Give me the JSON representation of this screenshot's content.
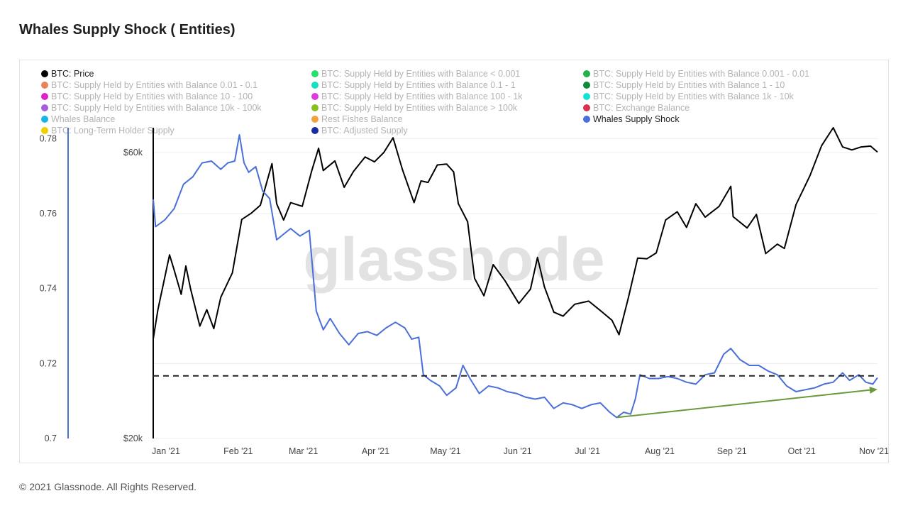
{
  "page": {
    "title": "Whales Supply Shock ( Entities)",
    "footer": "© 2021 Glassnode. All Rights Reserved.",
    "watermark": "glassnode"
  },
  "legend": [
    {
      "label": "BTC: Price",
      "color": "#000000",
      "active": true
    },
    {
      "label": "BTC: Supply Held by Entities with Balance < 0.001",
      "color": "#22e06a",
      "active": false
    },
    {
      "label": "BTC: Supply Held by Entities with Balance 0.001 - 0.01",
      "color": "#22b14c",
      "active": false
    },
    {
      "label": "BTC: Supply Held by Entities with Balance 0.01 - 0.1",
      "color": "#e8825c",
      "active": false
    },
    {
      "label": "BTC: Supply Held by Entities with Balance 0.1 - 1",
      "color": "#14e0c4",
      "active": false
    },
    {
      "label": "BTC: Supply Held by Entities with Balance 1 - 10",
      "color": "#0e8a3a",
      "active": false
    },
    {
      "label": "BTC: Supply Held by Entities with Balance 10 - 100",
      "color": "#d926c9",
      "active": false
    },
    {
      "label": "BTC: Supply Held by Entities with Balance 100 - 1k",
      "color": "#dd3be0",
      "active": false
    },
    {
      "label": "BTC: Supply Held by Entities with Balance 1k - 10k",
      "color": "#12e3d3",
      "active": false
    },
    {
      "label": "BTC: Supply Held by Entities with Balance 10k - 100k",
      "color": "#a65ee0",
      "active": false
    },
    {
      "label": "BTC: Supply Held by Entities with Balance > 100k",
      "color": "#86c01a",
      "active": false
    },
    {
      "label": "BTC: Exchange Balance",
      "color": "#d8324e",
      "active": false
    },
    {
      "label": "Whales Balance",
      "color": "#18b3e8",
      "active": false
    },
    {
      "label": "Rest Fishes Balance",
      "color": "#f3a13c",
      "active": false
    },
    {
      "label": "Whales Supply Shock",
      "color": "#4a6fd8",
      "active": true
    },
    {
      "label": "BTC: Long-Term Holder Supply",
      "color": "#f0d000",
      "active": false
    },
    {
      "label": "BTC: Adjusted Supply",
      "color": "#1a2aa0",
      "active": false
    }
  ],
  "chart_data": {
    "type": "line",
    "x_ticks": [
      "Jan '21",
      "Feb '21",
      "Mar '21",
      "Apr '21",
      "May '21",
      "Jun '21",
      "Jul '21",
      "Aug '21",
      "Sep '21",
      "Oct '21",
      "Nov '21"
    ],
    "y_left": {
      "ticks": [
        "0.78",
        "0.76",
        "0.74",
        "0.72",
        "0.7"
      ],
      "range": [
        0.7,
        0.781
      ]
    },
    "y_price": {
      "ticks": [
        "$60k",
        "$20k"
      ],
      "scale": "log",
      "range": [
        20000,
        60000
      ]
    },
    "reference_level": 0.7167,
    "series": [
      {
        "name": "BTC: Price",
        "axis": "price",
        "color": "#000000",
        "points": [
          [
            "2021-01-01",
            29300
          ],
          [
            "2021-01-03",
            32800
          ],
          [
            "2021-01-08",
            40500
          ],
          [
            "2021-01-10",
            38200
          ],
          [
            "2021-01-13",
            34800
          ],
          [
            "2021-01-15",
            38800
          ],
          [
            "2021-01-17",
            35600
          ],
          [
            "2021-01-21",
            30800
          ],
          [
            "2021-01-24",
            32800
          ],
          [
            "2021-01-27",
            30500
          ],
          [
            "2021-01-30",
            34400
          ],
          [
            "2021-02-04",
            37800
          ],
          [
            "2021-02-08",
            46400
          ],
          [
            "2021-02-12",
            47500
          ],
          [
            "2021-02-16",
            49000
          ],
          [
            "2021-02-21",
            57500
          ],
          [
            "2021-02-23",
            49300
          ],
          [
            "2021-02-26",
            46300
          ],
          [
            "2021-03-01",
            49500
          ],
          [
            "2021-03-06",
            48800
          ],
          [
            "2021-03-10",
            55800
          ],
          [
            "2021-03-13",
            61000
          ],
          [
            "2021-03-15",
            56000
          ],
          [
            "2021-03-20",
            58100
          ],
          [
            "2021-03-24",
            52500
          ],
          [
            "2021-03-28",
            55800
          ],
          [
            "2021-04-02",
            59000
          ],
          [
            "2021-04-06",
            57900
          ],
          [
            "2021-04-10",
            60000
          ],
          [
            "2021-04-14",
            63500
          ],
          [
            "2021-04-18",
            56200
          ],
          [
            "2021-04-23",
            49500
          ],
          [
            "2021-04-26",
            53800
          ],
          [
            "2021-04-29",
            53500
          ],
          [
            "2021-05-03",
            57200
          ],
          [
            "2021-05-07",
            57400
          ],
          [
            "2021-05-10",
            55700
          ],
          [
            "2021-05-12",
            49300
          ],
          [
            "2021-05-16",
            46000
          ],
          [
            "2021-05-19",
            37000
          ],
          [
            "2021-05-23",
            34600
          ],
          [
            "2021-05-27",
            39000
          ],
          [
            "2021-06-01",
            36700
          ],
          [
            "2021-06-07",
            33600
          ],
          [
            "2021-06-12",
            35500
          ],
          [
            "2021-06-15",
            40100
          ],
          [
            "2021-06-18",
            35800
          ],
          [
            "2021-06-22",
            32500
          ],
          [
            "2021-06-26",
            32000
          ],
          [
            "2021-07-01",
            33500
          ],
          [
            "2021-07-07",
            33900
          ],
          [
            "2021-07-12",
            32700
          ],
          [
            "2021-07-17",
            31500
          ],
          [
            "2021-07-20",
            29800
          ],
          [
            "2021-07-24",
            34300
          ],
          [
            "2021-07-28",
            40000
          ],
          [
            "2021-08-01",
            39900
          ],
          [
            "2021-08-05",
            40800
          ],
          [
            "2021-08-09",
            46300
          ],
          [
            "2021-08-14",
            47800
          ],
          [
            "2021-08-18",
            45000
          ],
          [
            "2021-08-22",
            49300
          ],
          [
            "2021-08-26",
            46800
          ],
          [
            "2021-09-01",
            48800
          ],
          [
            "2021-09-06",
            52700
          ],
          [
            "2021-09-07",
            46900
          ],
          [
            "2021-09-13",
            44900
          ],
          [
            "2021-09-17",
            47300
          ],
          [
            "2021-09-21",
            40700
          ],
          [
            "2021-09-26",
            42200
          ],
          [
            "2021-09-29",
            41500
          ],
          [
            "2021-10-04",
            49100
          ],
          [
            "2021-10-10",
            54900
          ],
          [
            "2021-10-15",
            61600
          ],
          [
            "2021-10-20",
            66000
          ],
          [
            "2021-10-24",
            61300
          ],
          [
            "2021-10-28",
            60600
          ],
          [
            "2021-11-01",
            61300
          ],
          [
            "2021-11-05",
            61500
          ],
          [
            "2021-11-08",
            60100
          ]
        ]
      },
      {
        "name": "Whales Supply Shock",
        "axis": "left",
        "color": "#4a6fd8",
        "points": [
          [
            "2021-01-01",
            0.7638
          ],
          [
            "2021-01-02",
            0.7565
          ],
          [
            "2021-01-06",
            0.7583
          ],
          [
            "2021-01-10",
            0.7613
          ],
          [
            "2021-01-14",
            0.7678
          ],
          [
            "2021-01-18",
            0.7698
          ],
          [
            "2021-01-22",
            0.7735
          ],
          [
            "2021-01-26",
            0.774
          ],
          [
            "2021-01-30",
            0.7718
          ],
          [
            "2021-02-02",
            0.7735
          ],
          [
            "2021-02-05",
            0.774
          ],
          [
            "2021-02-07",
            0.781
          ],
          [
            "2021-02-09",
            0.7735
          ],
          [
            "2021-02-11",
            0.771
          ],
          [
            "2021-02-14",
            0.7725
          ],
          [
            "2021-02-17",
            0.766
          ],
          [
            "2021-02-20",
            0.764
          ],
          [
            "2021-02-23",
            0.753
          ],
          [
            "2021-02-26",
            0.7545
          ],
          [
            "2021-03-01",
            0.756
          ],
          [
            "2021-03-05",
            0.754
          ],
          [
            "2021-03-09",
            0.7555
          ],
          [
            "2021-03-12",
            0.734
          ],
          [
            "2021-03-15",
            0.729
          ],
          [
            "2021-03-18",
            0.732
          ],
          [
            "2021-03-22",
            0.728
          ],
          [
            "2021-03-26",
            0.725
          ],
          [
            "2021-03-30",
            0.728
          ],
          [
            "2021-04-03",
            0.7285
          ],
          [
            "2021-04-07",
            0.7275
          ],
          [
            "2021-04-11",
            0.7295
          ],
          [
            "2021-04-15",
            0.731
          ],
          [
            "2021-04-19",
            0.7295
          ],
          [
            "2021-04-22",
            0.7265
          ],
          [
            "2021-04-25",
            0.727
          ],
          [
            "2021-04-27",
            0.717
          ],
          [
            "2021-04-30",
            0.7155
          ],
          [
            "2021-05-04",
            0.714
          ],
          [
            "2021-05-07",
            0.7115
          ],
          [
            "2021-05-11",
            0.7135
          ],
          [
            "2021-05-14",
            0.7195
          ],
          [
            "2021-05-17",
            0.716
          ],
          [
            "2021-05-21",
            0.712
          ],
          [
            "2021-05-25",
            0.714
          ],
          [
            "2021-05-29",
            0.7135
          ],
          [
            "2021-06-02",
            0.7125
          ],
          [
            "2021-06-06",
            0.712
          ],
          [
            "2021-06-10",
            0.711
          ],
          [
            "2021-06-14",
            0.7105
          ],
          [
            "2021-06-18",
            0.711
          ],
          [
            "2021-06-22",
            0.708
          ],
          [
            "2021-06-26",
            0.7095
          ],
          [
            "2021-06-30",
            0.709
          ],
          [
            "2021-07-04",
            0.708
          ],
          [
            "2021-07-08",
            0.709
          ],
          [
            "2021-07-12",
            0.7095
          ],
          [
            "2021-07-16",
            0.707
          ],
          [
            "2021-07-19",
            0.7056
          ],
          [
            "2021-07-22",
            0.707
          ],
          [
            "2021-07-25",
            0.7065
          ],
          [
            "2021-07-27",
            0.7105
          ],
          [
            "2021-07-29",
            0.717
          ],
          [
            "2021-08-02",
            0.716
          ],
          [
            "2021-08-06",
            0.716
          ],
          [
            "2021-08-10",
            0.7165
          ],
          [
            "2021-08-14",
            0.716
          ],
          [
            "2021-08-18",
            0.715
          ],
          [
            "2021-08-22",
            0.7145
          ],
          [
            "2021-08-26",
            0.717
          ],
          [
            "2021-08-30",
            0.7175
          ],
          [
            "2021-09-03",
            0.7225
          ],
          [
            "2021-09-06",
            0.724
          ],
          [
            "2021-09-10",
            0.721
          ],
          [
            "2021-09-14",
            0.7195
          ],
          [
            "2021-09-18",
            0.7195
          ],
          [
            "2021-09-22",
            0.718
          ],
          [
            "2021-09-26",
            0.717
          ],
          [
            "2021-09-30",
            0.714
          ],
          [
            "2021-10-04",
            0.7125
          ],
          [
            "2021-10-08",
            0.713
          ],
          [
            "2021-10-12",
            0.7135
          ],
          [
            "2021-10-16",
            0.7145
          ],
          [
            "2021-10-20",
            0.715
          ],
          [
            "2021-10-24",
            0.7175
          ],
          [
            "2021-10-27",
            0.7155
          ],
          [
            "2021-10-31",
            0.717
          ],
          [
            "2021-11-03",
            0.715
          ],
          [
            "2021-11-06",
            0.7145
          ],
          [
            "2021-11-08",
            0.7162
          ]
        ]
      }
    ],
    "annotations": [
      {
        "type": "horizontal-dashed-line",
        "value": 0.7167,
        "color": "#222222"
      },
      {
        "type": "trend-arrow",
        "from": [
          "2021-07-19",
          0.7056
        ],
        "to": [
          "2021-11-08",
          0.7131
        ],
        "color": "#6a9a3a"
      }
    ]
  }
}
